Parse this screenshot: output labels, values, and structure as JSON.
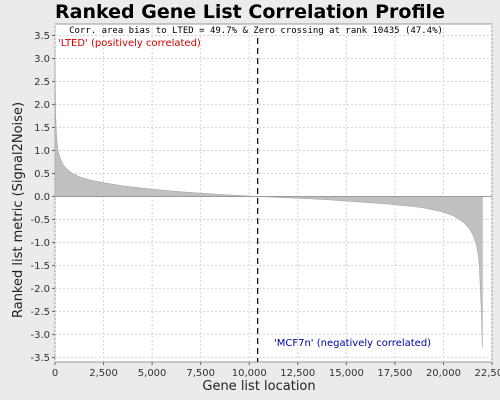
{
  "chart_data": {
    "type": "area",
    "title": "Ranked Gene List Correlation Profile",
    "xlabel": "Gene list location",
    "ylabel": "Ranked list metric (Signal2Noise)",
    "xlim": [
      0,
      22500
    ],
    "ylim": [
      -3.6,
      3.75
    ],
    "x_ticks": [
      0,
      2500,
      5000,
      7500,
      10000,
      12500,
      15000,
      17500,
      20000,
      22500
    ],
    "x_tick_labels": [
      "0",
      "2,500",
      "5,000",
      "7,500",
      "10,000",
      "12,500",
      "15,000",
      "17,500",
      "20,000",
      "22,500"
    ],
    "y_ticks": [
      3.5,
      3.0,
      2.5,
      2.0,
      1.5,
      1.0,
      0.5,
      0.0,
      -0.5,
      -1.0,
      -1.5,
      -2.0,
      -2.5,
      -3.0,
      -3.5
    ],
    "y_tick_labels": [
      "3.5",
      "3.0",
      "2.5",
      "2.0",
      "1.5",
      "1.0",
      "0.5",
      "0.0",
      "-0.5",
      "-1.0",
      "-1.5",
      "-2.0",
      "-2.5",
      "-3.0",
      "-3.5"
    ],
    "grid": true,
    "annotation": "Corr. area bias to LTED = 49.7% & Zero crossing at rank 10435 (47.4%)",
    "positive_label": "'LTED' (positively correlated)",
    "negative_label": "'MCF7n' (negatively correlated)",
    "zero_crossing_rank": 10435,
    "series": [
      {
        "x": [
          0,
          30,
          80,
          150,
          250,
          400,
          600,
          900,
          1300,
          1800,
          2500,
          3500,
          4500,
          5500,
          6500,
          7500,
          8500,
          9500,
          10435,
          11000,
          12000,
          13000,
          14000,
          15000,
          16000,
          17000,
          18000,
          18500,
          19000,
          19500,
          20000,
          20500,
          21000,
          21300,
          21500,
          21700,
          21800,
          21850,
          21900,
          21950,
          22000
        ],
        "values": [
          3.2,
          1.8,
          1.3,
          1.0,
          0.85,
          0.7,
          0.6,
          0.5,
          0.42,
          0.36,
          0.3,
          0.23,
          0.18,
          0.14,
          0.1,
          0.07,
          0.045,
          0.02,
          0.0,
          -0.01,
          -0.03,
          -0.05,
          -0.07,
          -0.1,
          -0.13,
          -0.16,
          -0.2,
          -0.22,
          -0.25,
          -0.29,
          -0.34,
          -0.42,
          -0.55,
          -0.68,
          -0.82,
          -1.05,
          -1.3,
          -1.55,
          -2.0,
          -2.5,
          -3.3
        ]
      }
    ],
    "colors": {
      "fill": "#c0c0c0",
      "grid": "#d4d4d4",
      "positive_label": "#cc0000",
      "negative_label": "#0000aa",
      "zero_line": "#000000"
    }
  }
}
